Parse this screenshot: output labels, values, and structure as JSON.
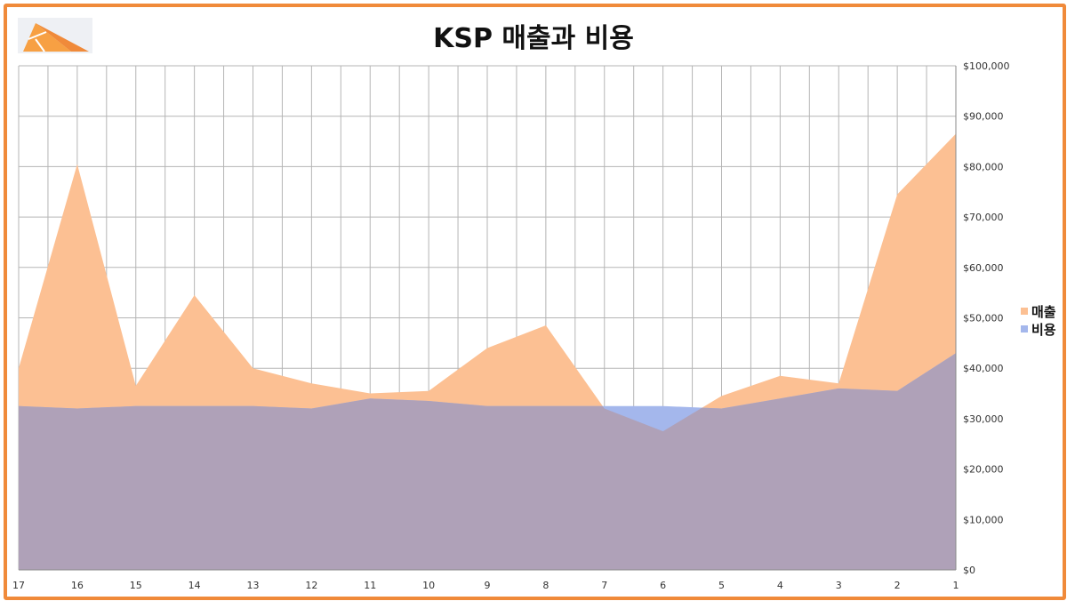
{
  "title": "KSP 매출과 비용",
  "colors": {
    "frame": "#f08a3a",
    "revenue": "#fcc093",
    "expense": "#a4b7ec",
    "overlap": "#afa1b8",
    "grid": "#b5b5b5"
  },
  "chart_data": {
    "type": "area",
    "title": "KSP 매출과 비용",
    "x": [
      "17",
      "16",
      "15",
      "14",
      "13",
      "12",
      "11",
      "10",
      "9",
      "8",
      "7",
      "6",
      "5",
      "4",
      "3",
      "2",
      "1"
    ],
    "series": [
      {
        "name": "매출",
        "values": [
          40000,
          80500,
          36500,
          54500,
          40000,
          37000,
          35000,
          35500,
          44000,
          48500,
          32000,
          27500,
          34500,
          38500,
          37000,
          74500,
          86500
        ]
      },
      {
        "name": "비용",
        "values": [
          32500,
          32000,
          32500,
          32500,
          32500,
          32000,
          34000,
          33500,
          32500,
          32500,
          32500,
          32500,
          32000,
          34000,
          36000,
          35500,
          43000
        ]
      }
    ],
    "yticks": [
      "$0",
      "$10,000",
      "$20,000",
      "$30,000",
      "$40,000",
      "$50,000",
      "$60,000",
      "$70,000",
      "$80,000",
      "$90,000",
      "$100,000"
    ],
    "ylim": [
      0,
      100000
    ],
    "y_axis_position": "right",
    "legend_position": "right",
    "grid": true
  }
}
